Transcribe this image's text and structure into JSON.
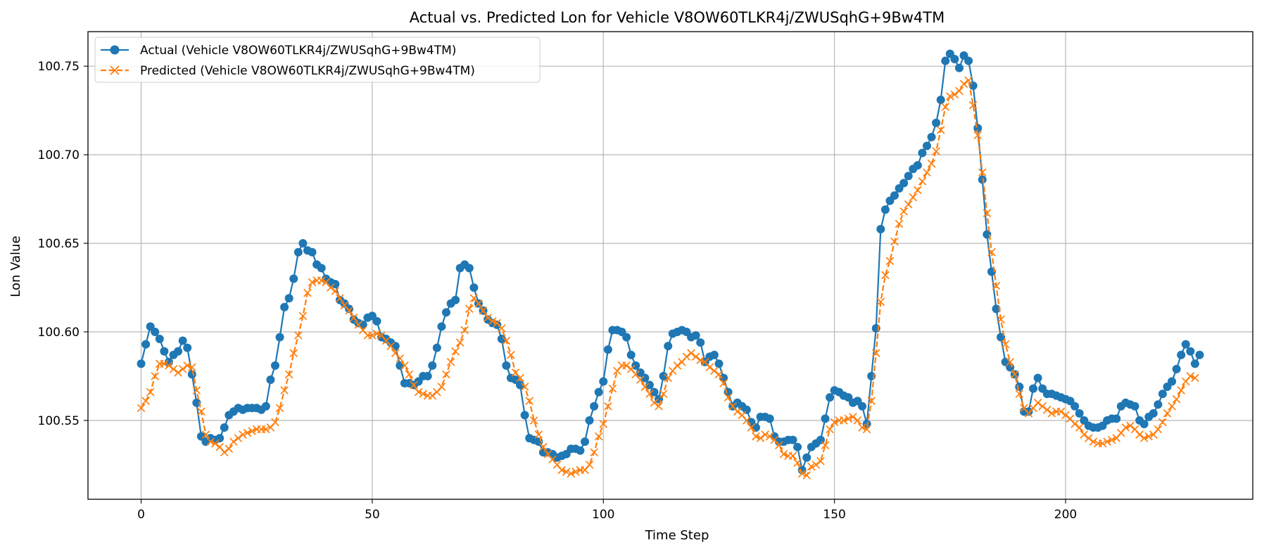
{
  "chart_data": {
    "type": "line",
    "title": "Actual vs. Predicted Lon for Vehicle V8OW60TLKR4j/ZWUSqhG+9Bw4TM",
    "xlabel": "Time Step",
    "ylabel": "Lon Value",
    "xlim": [
      -11.5,
      240.5
    ],
    "ylim": [
      100.5055,
      100.7695
    ],
    "xticks": [
      0,
      50,
      100,
      150,
      200
    ],
    "yticks": [
      100.55,
      100.6,
      100.65,
      100.7,
      100.75
    ],
    "xtick_labels": [
      "0",
      "50",
      "100",
      "150",
      "200"
    ],
    "ytick_labels": [
      "100.55",
      "100.60",
      "100.65",
      "100.70",
      "100.75"
    ],
    "grid": true,
    "legend_position": "top-left",
    "series": [
      {
        "name": "Actual (Vehicle V8OW60TLKR4j/ZWUSqhG+9Bw4TM)",
        "color": "#1f77b4",
        "line_style": "solid",
        "marker": "circle",
        "x_start": 0,
        "values": [
          100.582,
          100.593,
          100.603,
          100.6,
          100.596,
          100.589,
          100.583,
          100.587,
          100.589,
          100.595,
          100.591,
          100.576,
          100.56,
          100.541,
          100.538,
          100.54,
          100.539,
          100.54,
          100.546,
          100.553,
          100.555,
          100.557,
          100.556,
          100.557,
          100.557,
          100.557,
          100.556,
          100.558,
          100.573,
          100.581,
          100.597,
          100.614,
          100.619,
          100.63,
          100.645,
          100.65,
          100.646,
          100.645,
          100.638,
          100.636,
          100.63,
          100.628,
          100.627,
          100.618,
          100.616,
          100.613,
          100.607,
          100.605,
          100.604,
          100.608,
          100.609,
          100.606,
          100.597,
          100.596,
          100.594,
          100.592,
          100.581,
          100.571,
          100.571,
          100.57,
          100.572,
          100.575,
          100.575,
          100.581,
          100.591,
          100.603,
          100.611,
          100.616,
          100.618,
          100.636,
          100.638,
          100.636,
          100.625,
          100.616,
          100.612,
          100.607,
          100.605,
          100.604,
          100.596,
          100.581,
          100.574,
          100.573,
          100.57,
          100.553,
          100.54,
          100.539,
          100.538,
          100.532,
          100.532,
          100.531,
          100.529,
          100.53,
          100.531,
          100.534,
          100.534,
          100.533,
          100.538,
          100.55,
          100.558,
          100.566,
          100.572,
          100.59,
          100.601,
          100.601,
          100.6,
          100.597,
          100.587,
          100.581,
          100.577,
          100.574,
          100.57,
          100.566,
          100.562,
          100.575,
          100.592,
          100.599,
          100.6,
          100.601,
          100.6,
          100.597,
          100.598,
          100.594,
          100.583,
          100.586,
          100.587,
          100.582,
          100.574,
          100.566,
          100.558,
          100.56,
          100.558,
          100.556,
          100.549,
          100.546,
          100.552,
          100.552,
          100.551,
          100.541,
          100.538,
          100.538,
          100.539,
          100.539,
          100.535,
          100.522,
          100.529,
          100.535,
          100.537,
          100.539,
          100.551,
          100.563,
          100.567,
          100.566,
          100.564,
          100.563,
          100.56,
          100.561,
          100.558,
          100.548,
          100.575,
          100.602,
          100.658,
          100.669,
          100.674,
          100.677,
          100.681,
          100.684,
          100.688,
          100.692,
          100.694,
          100.701,
          100.705,
          100.71,
          100.718,
          100.731,
          100.753,
          100.757,
          100.754,
          100.749,
          100.756,
          100.753,
          100.739,
          100.715,
          100.686,
          100.655,
          100.634,
          100.613,
          100.597,
          100.583,
          100.58,
          100.576,
          100.569,
          100.555,
          100.555,
          100.568,
          100.574,
          100.568,
          100.565,
          100.565,
          100.564,
          100.563,
          100.562,
          100.561,
          100.558,
          100.554,
          100.55,
          100.547,
          100.546,
          100.546,
          100.547,
          100.55,
          100.551,
          100.551,
          100.558,
          100.56,
          100.559,
          100.558,
          100.55,
          100.548,
          100.552,
          100.554,
          100.559,
          100.565,
          100.569,
          100.572,
          100.579,
          100.587,
          100.593,
          100.589,
          100.582,
          100.587
        ]
      },
      {
        "name": "Predicted (Vehicle V8OW60TLKR4j/ZWUSqhG+9Bw4TM)",
        "color": "#ff7f0e",
        "line_style": "dashed",
        "marker": "x",
        "x_start": 0,
        "values": [
          100.557,
          100.561,
          100.566,
          100.575,
          100.582,
          100.582,
          100.581,
          100.579,
          100.577,
          100.579,
          100.581,
          100.58,
          100.567,
          100.555,
          100.542,
          100.538,
          100.537,
          100.535,
          100.532,
          100.534,
          100.538,
          100.54,
          100.542,
          100.543,
          100.544,
          100.545,
          100.545,
          100.545,
          100.546,
          100.549,
          100.557,
          100.567,
          100.576,
          100.588,
          100.598,
          100.609,
          100.622,
          100.628,
          100.629,
          100.629,
          100.628,
          100.625,
          100.623,
          100.619,
          100.615,
          100.612,
          100.608,
          100.604,
          100.601,
          100.598,
          100.598,
          100.599,
          100.598,
          100.595,
          100.592,
          100.588,
          100.585,
          100.581,
          100.576,
          100.57,
          100.566,
          100.565,
          100.564,
          100.564,
          100.566,
          100.569,
          100.576,
          100.583,
          100.589,
          100.594,
          100.601,
          100.613,
          100.619,
          100.616,
          100.612,
          100.608,
          100.606,
          100.605,
          100.602,
          100.595,
          100.587,
          100.577,
          100.574,
          100.569,
          100.561,
          100.55,
          100.542,
          100.535,
          100.531,
          100.528,
          100.525,
          100.522,
          100.521,
          100.52,
          100.521,
          100.522,
          100.522,
          100.525,
          100.532,
          100.541,
          100.548,
          100.558,
          100.568,
          100.578,
          100.581,
          100.581,
          100.579,
          100.576,
          100.573,
          100.569,
          100.565,
          100.56,
          100.558,
          100.565,
          100.574,
          100.578,
          100.581,
          100.583,
          100.586,
          100.588,
          100.586,
          100.584,
          100.583,
          100.58,
          100.578,
          100.576,
          100.571,
          100.563,
          100.558,
          100.555,
          100.553,
          100.55,
          100.546,
          100.541,
          100.54,
          100.542,
          100.541,
          100.539,
          100.536,
          100.531,
          100.53,
          100.53,
          100.526,
          100.52,
          100.519,
          100.524,
          100.525,
          100.527,
          100.536,
          100.545,
          100.549,
          100.55,
          100.55,
          100.551,
          100.552,
          100.55,
          100.546,
          100.545,
          100.561,
          100.588,
          100.617,
          100.632,
          100.64,
          100.651,
          100.661,
          100.668,
          100.672,
          100.676,
          100.68,
          100.685,
          100.69,
          100.695,
          100.702,
          100.714,
          100.727,
          100.733,
          100.734,
          100.736,
          100.74,
          100.742,
          100.728,
          100.711,
          100.69,
          100.667,
          100.645,
          100.626,
          100.607,
          100.593,
          100.583,
          100.576,
          100.565,
          100.557,
          100.554,
          100.557,
          100.56,
          100.558,
          100.556,
          100.554,
          100.555,
          100.555,
          100.553,
          100.551,
          100.548,
          100.546,
          100.542,
          100.54,
          100.538,
          100.537,
          100.537,
          100.538,
          100.539,
          100.54,
          100.543,
          100.546,
          100.547,
          100.545,
          100.542,
          100.54,
          100.541,
          100.542,
          100.545,
          100.549,
          100.554,
          100.558,
          100.562,
          100.567,
          100.572,
          100.575,
          100.574
        ]
      }
    ]
  }
}
